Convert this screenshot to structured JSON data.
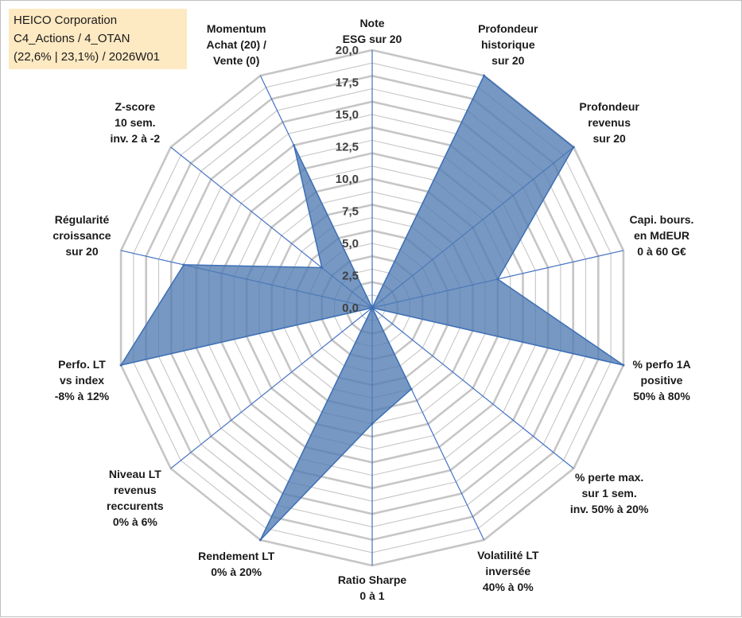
{
  "title_box": {
    "line1": "HEICO Corporation",
    "line2": "C4_Actions / 4_OTAN",
    "line3": "(22,6% | 23,1%) / 2026W01"
  },
  "colors": {
    "fill": "#4f7bb2",
    "series_line": "#3d6fb5",
    "spoke": "#4472c4",
    "grid": "#c6c6c6",
    "title_bg": "#fde9c2"
  },
  "chart_data": {
    "type": "radar",
    "rlim": [
      0,
      20
    ],
    "tick_labels": [
      "0,0",
      "2,5",
      "5,0",
      "7,5",
      "10,0",
      "12,5",
      "15,0",
      "17,5",
      "20,0"
    ],
    "tick_values": [
      0,
      2.5,
      5,
      7.5,
      10,
      12.5,
      15,
      17.5,
      20
    ],
    "grid_rings": 20,
    "axes": [
      {
        "lines": [
          "Note",
          "ESG sur 20"
        ],
        "value": 0
      },
      {
        "lines": [
          "Profondeur",
          "historique",
          "sur 20"
        ],
        "value": 20
      },
      {
        "lines": [
          "Profondeur",
          "revenus",
          "sur 20"
        ],
        "value": 20
      },
      {
        "lines": [
          "Capi. bours.",
          "en MdEUR",
          "0 à 60 G€"
        ],
        "value": 10
      },
      {
        "lines": [
          "% perfo 1A",
          "positive",
          "50% à 80%"
        ],
        "value": 20
      },
      {
        "lines": [
          "% perte max.",
          "sur 1 sem.",
          "inv. 50% à 20%"
        ],
        "value": 0
      },
      {
        "lines": [
          "Volatilité LT",
          "inversée",
          "40% à 0%"
        ],
        "value": 7
      },
      {
        "lines": [
          "Ratio Sharpe",
          "0 à 1"
        ],
        "value": 9
      },
      {
        "lines": [
          "Rendement LT",
          "0% à 20%"
        ],
        "value": 20
      },
      {
        "lines": [
          "Niveau LT",
          "revenus",
          "reccurents",
          "0% à 6%"
        ],
        "value": 0
      },
      {
        "lines": [
          "Perfo. LT",
          "vs index",
          "-8% à 12%"
        ],
        "value": 20
      },
      {
        "lines": [
          "Régularité",
          "croissance",
          "sur 20"
        ],
        "value": 15
      },
      {
        "lines": [
          "Z-score",
          "10 sem.",
          "inv. 2 à -2"
        ],
        "value": 5
      },
      {
        "lines": [
          "Momentum",
          "Achat (20) /",
          "Vente (0)"
        ],
        "value": 14
      }
    ]
  }
}
